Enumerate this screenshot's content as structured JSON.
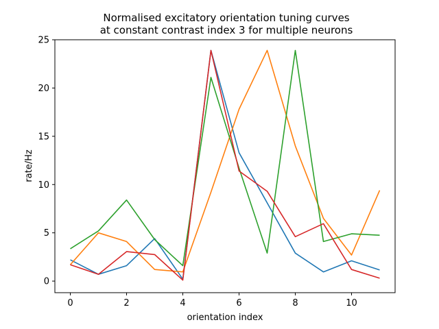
{
  "chart_data": {
    "type": "line",
    "title": "Normalised excitatory orientation tuning curves",
    "subtitle": "at constant contrast index 3 for multiple neurons",
    "xlabel": "orientation index",
    "ylabel": "rate/Hz",
    "xlim": [
      -0.55,
      11.55
    ],
    "ylim": [
      -1.2,
      25.0
    ],
    "xticks": [
      0,
      2,
      4,
      6,
      8,
      10
    ],
    "yticks": [
      0,
      5,
      10,
      15,
      20,
      25
    ],
    "grid": false,
    "x": [
      0,
      1,
      2,
      3,
      4,
      5,
      6,
      7,
      8,
      9,
      10,
      11
    ],
    "series": [
      {
        "color": "#1f77b4",
        "values": [
          2.2,
          0.7,
          1.6,
          4.4,
          0.2,
          23.9,
          13.3,
          8.1,
          2.9,
          0.95,
          2.1,
          1.15
        ]
      },
      {
        "color": "#ff7f0e",
        "values": [
          1.7,
          5.0,
          4.1,
          1.2,
          0.95,
          9.2,
          17.8,
          23.9,
          14.0,
          6.5,
          2.7,
          9.4
        ]
      },
      {
        "color": "#2ca02c",
        "values": [
          3.35,
          5.2,
          8.4,
          4.3,
          1.6,
          21.1,
          11.7,
          2.9,
          23.9,
          4.1,
          4.9,
          4.75
        ]
      },
      {
        "color": "#d62728",
        "values": [
          1.7,
          0.7,
          3.05,
          2.75,
          0.1,
          23.9,
          11.4,
          9.3,
          4.6,
          5.95,
          1.2,
          0.3
        ]
      }
    ]
  }
}
